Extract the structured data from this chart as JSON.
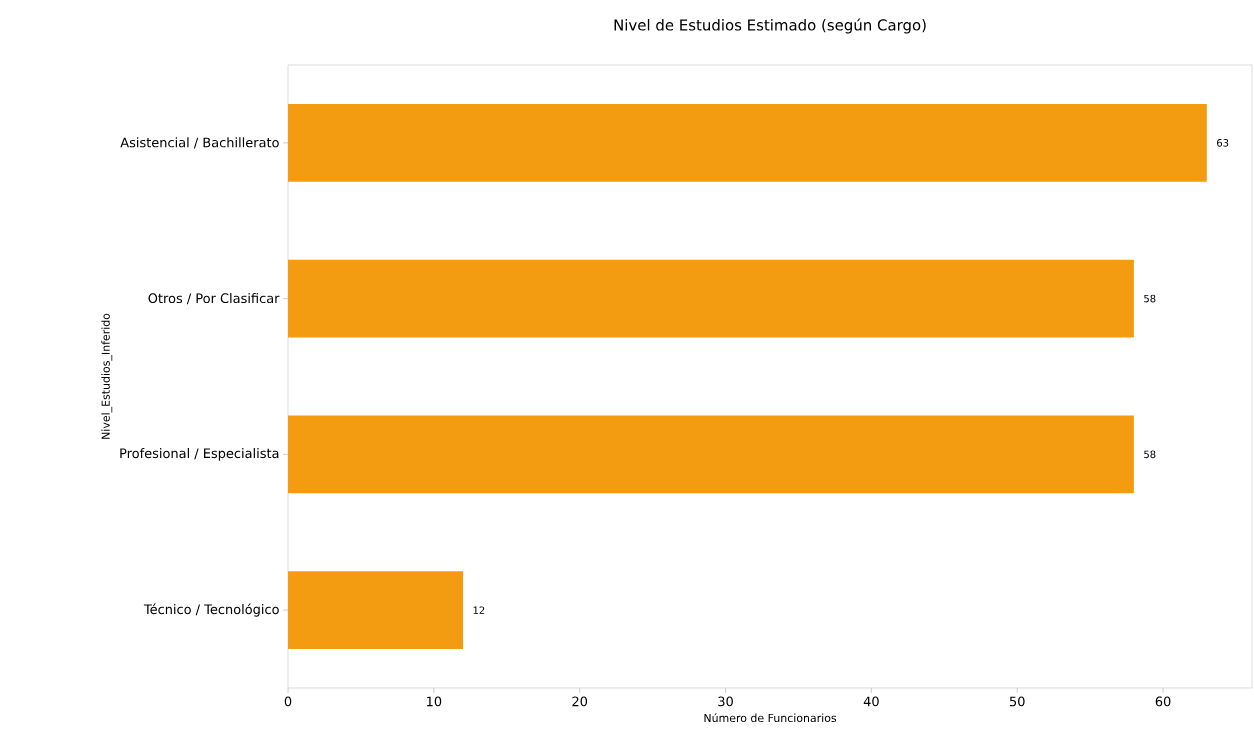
{
  "chart_data": {
    "type": "bar",
    "orientation": "horizontal",
    "title": "Nivel de Estudios Estimado (según Cargo)",
    "xlabel": "Número de Funcionarios",
    "ylabel": "Nivel_Estudios_Inferido",
    "categories": [
      "Asistencial / Bachillerato",
      "Otros / Por Clasificar",
      "Profesional / Especialista",
      "Técnico / Tecnológico"
    ],
    "values": [
      63,
      58,
      58,
      12
    ],
    "color": "#f39c12",
    "xlim": [
      0,
      66.1
    ],
    "xticks": [
      0,
      10,
      20,
      30,
      40,
      50,
      60
    ],
    "data_labels": true,
    "grid": false
  }
}
